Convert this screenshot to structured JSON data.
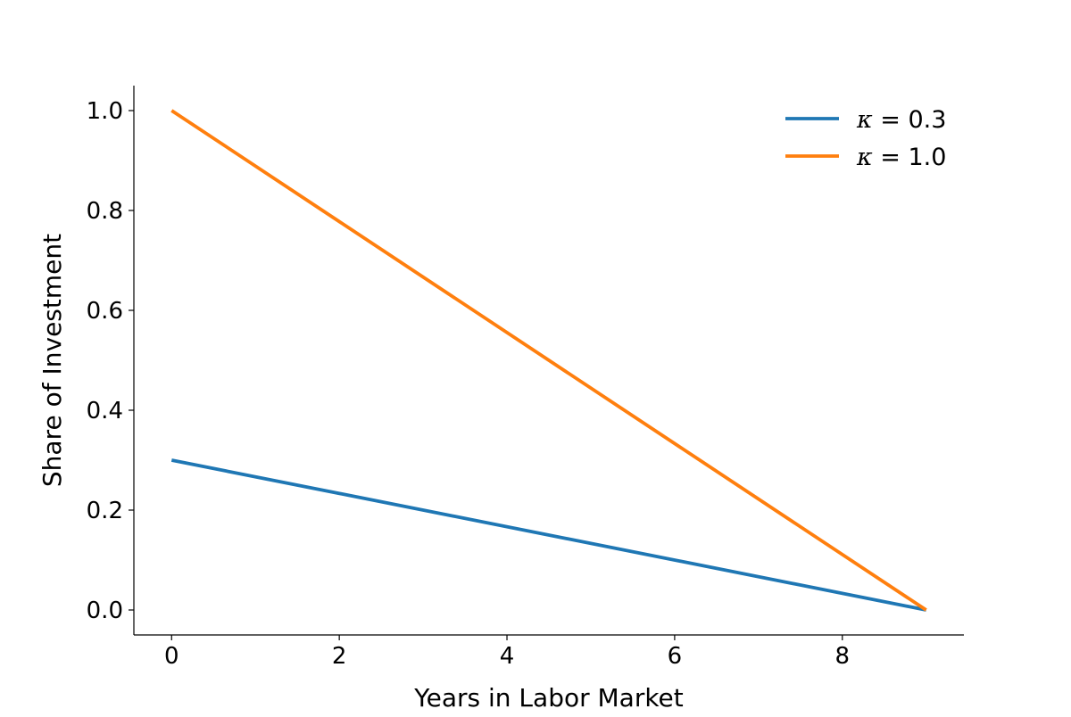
{
  "chart_data": {
    "type": "line",
    "title": "",
    "xlabel": "Years in Labor Market",
    "ylabel": "Share of Investment",
    "xlim": [
      -0.45,
      9.45
    ],
    "ylim": [
      -0.05,
      1.05
    ],
    "xticks": [
      0,
      2,
      4,
      6,
      8
    ],
    "yticks": [
      0.0,
      0.2,
      0.4,
      0.6,
      0.8,
      1.0
    ],
    "xtick_labels": [
      "0",
      "2",
      "4",
      "6",
      "8"
    ],
    "ytick_labels": [
      "0.0",
      "0.2",
      "0.4",
      "0.6",
      "0.8",
      "1.0"
    ],
    "grid": false,
    "legend_position": "top-right",
    "series": [
      {
        "name": "κ = 0.3",
        "legend_symbol": "κ",
        "legend_value": "0.3",
        "color": "#1f77b4",
        "x": [
          0,
          9
        ],
        "y": [
          0.3,
          0.0
        ]
      },
      {
        "name": "κ = 1.0",
        "legend_symbol": "κ",
        "legend_value": "1.0",
        "color": "#ff7f0e",
        "x": [
          0,
          9
        ],
        "y": [
          1.0,
          0.0
        ]
      }
    ]
  }
}
